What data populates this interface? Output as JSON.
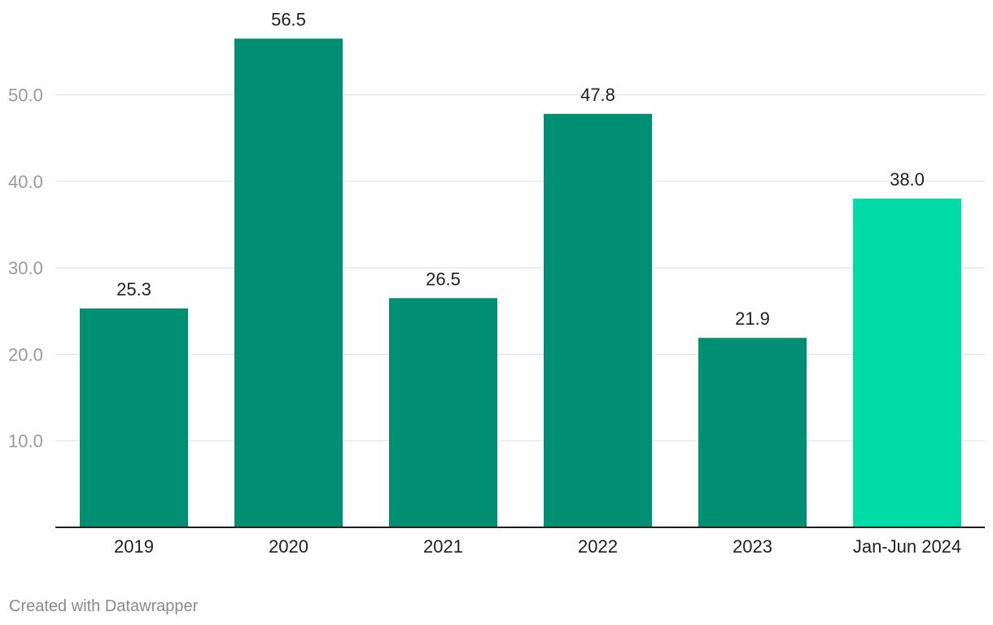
{
  "chart_data": {
    "type": "bar",
    "categories": [
      "2019",
      "2020",
      "2021",
      "2022",
      "2023",
      "Jan-Jun 2024"
    ],
    "values": [
      25.3,
      56.5,
      26.5,
      47.8,
      21.9,
      38.0
    ],
    "value_labels": [
      "25.3",
      "56.5",
      "26.5",
      "47.8",
      "21.9",
      "38.0"
    ],
    "title": "",
    "xlabel": "",
    "ylabel": "",
    "ylim": [
      0,
      57
    ],
    "y_ticks": [
      10,
      20,
      30,
      40,
      50
    ],
    "y_tick_labels": [
      "10.0",
      "20.0",
      "30.0",
      "40.0",
      "50.0"
    ],
    "grid": true,
    "bar_colors": [
      "#008f73",
      "#008f73",
      "#008f73",
      "#008f73",
      "#008f73",
      "#00dba8"
    ],
    "colors": {
      "bar": "#008f73",
      "highlight_bar": "#00dba8",
      "gridline": "#e3e3e3",
      "baseline": "#1f1f1f",
      "tick_label": "#9a9a9a",
      "category_label": "#1f1f1f"
    }
  },
  "footer": {
    "credit": "Created with Datawrapper"
  }
}
